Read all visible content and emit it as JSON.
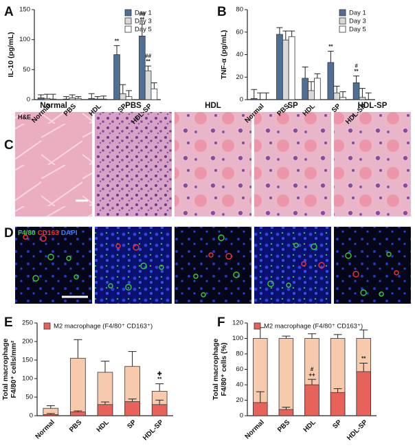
{
  "panel_letters": [
    "A",
    "B",
    "C",
    "D",
    "E",
    "F"
  ],
  "micrographs": {
    "columns": [
      "Normal",
      "PBS",
      "HDL",
      "SP",
      "HDL-SP"
    ],
    "stain_label": "H&E",
    "if_labels": [
      {
        "text": "F4/80",
        "color": "#3fd13f"
      },
      {
        "text": "CD163",
        "color": "#ff2b2b"
      },
      {
        "text": "DAPI",
        "color": "#3b7cff"
      }
    ]
  },
  "chart_data": [
    {
      "type": "bar",
      "mode": "grouped",
      "ylabel": [
        "IL-10 (pg/mL)"
      ],
      "legend": "upper right",
      "categories": [
        "Normal",
        "PBS",
        "HDL",
        "SP",
        "HDL-SP"
      ],
      "series": [
        {
          "name": "Day 1",
          "color": "#4f6f95",
          "values": [
            3,
            1,
            2,
            75,
            106
          ],
          "errors": [
            5,
            4,
            8,
            15,
            20
          ]
        },
        {
          "name": "Day 3",
          "color": "#d9d9d9",
          "values": [
            2,
            3,
            1,
            10,
            48
          ],
          "errors": [
            7,
            5,
            4,
            15,
            8
          ]
        },
        {
          "name": "Day 5",
          "color": "#ffffff",
          "values": [
            1,
            2,
            1,
            5,
            18
          ],
          "errors": [
            8,
            3,
            5,
            10,
            10
          ]
        }
      ],
      "annotations": [
        {
          "category": "SP",
          "series": "Day 1",
          "lines": [
            "**"
          ]
        },
        {
          "category": "HDL-SP",
          "series": "Day 1",
          "lines": [
            "##",
            "**"
          ]
        },
        {
          "category": "HDL-SP",
          "series": "Day 3",
          "lines": [
            "##",
            "**"
          ]
        }
      ],
      "ylim": [
        0,
        150
      ],
      "yticks": [
        0,
        50,
        100,
        150
      ]
    },
    {
      "type": "bar",
      "mode": "grouped",
      "ylabel": [
        "TNF-α (pg/mL)"
      ],
      "legend": "upper right",
      "categories": [
        "Normal",
        "PBS",
        "HDL",
        "SP",
        "HDL-SP"
      ],
      "series": [
        {
          "name": "Day 1",
          "color": "#4f6f95",
          "values": [
            1,
            58,
            19,
            33,
            15
          ],
          "errors": [
            8,
            6,
            10,
            10,
            6
          ]
        },
        {
          "name": "Day 3",
          "color": "#d9d9d9",
          "values": [
            0,
            53,
            8,
            6,
            2
          ],
          "errors": [
            6,
            8,
            8,
            6,
            8
          ]
        },
        {
          "name": "Day 5",
          "color": "#ffffff",
          "values": [
            0,
            56,
            19,
            2,
            0
          ],
          "errors": [
            6,
            5,
            4,
            5,
            6
          ]
        }
      ],
      "annotations": [
        {
          "category": "SP",
          "series": "Day 1",
          "lines": [
            "**"
          ]
        },
        {
          "category": "HDL-SP",
          "series": "Day 1",
          "lines": [
            "#",
            "**"
          ]
        }
      ],
      "ylim": [
        0,
        80
      ],
      "yticks": [
        0,
        20,
        40,
        60,
        80
      ]
    },
    {
      "type": "bar",
      "mode": "overlay",
      "ylabel": [
        "Total macrophage",
        "F4/80⁺ cells/mm²"
      ],
      "legend": "top",
      "categories": [
        "Normal",
        "PBS",
        "HDL",
        "SP",
        "HDL-SP"
      ],
      "series": [
        {
          "name": "M2 macrophage (F4/80⁺ CD163⁺)",
          "color": "#e8625c",
          "values": [
            3,
            10,
            30,
            38,
            30
          ],
          "errors": [
            3,
            3,
            7,
            7,
            12
          ]
        },
        {
          "color": "#f7caad",
          "values": [
            20,
            155,
            117,
            133,
            66
          ],
          "errors": [
            7,
            50,
            30,
            40,
            20
          ]
        }
      ],
      "annotations": [
        {
          "category": "HDL-SP",
          "series_index": 1,
          "lines": [
            "✚",
            "**"
          ]
        }
      ],
      "ylim": [
        0,
        250
      ],
      "yticks": [
        0,
        50,
        100,
        150,
        200,
        250
      ]
    },
    {
      "type": "bar",
      "mode": "overlay",
      "ylabel": [
        "Total macrophage",
        "F4/80⁺ cells (%)"
      ],
      "legend": "top",
      "categories": [
        "Normal",
        "PBS",
        "HDL",
        "SP",
        "HDL-SP"
      ],
      "series": [
        {
          "name": "M2 macrophage (F4/80⁺ CD163⁺)",
          "color": "#e8625c",
          "values": [
            17,
            8,
            40,
            30,
            57
          ],
          "errors": [
            14,
            3,
            7,
            5,
            11
          ]
        },
        {
          "color": "#f7caad",
          "values": [
            100,
            100,
            100,
            100,
            100
          ],
          "errors": [
            14,
            3,
            6,
            5,
            11
          ]
        }
      ],
      "annotations": [
        {
          "category": "HDL",
          "series_index": 0,
          "lines": [
            "#",
            "++"
          ]
        },
        {
          "category": "HDL-SP",
          "series_index": 0,
          "lines": [
            "**"
          ]
        }
      ],
      "ylim": [
        0,
        120
      ],
      "yticks": [
        0,
        20,
        40,
        60,
        80,
        100,
        120
      ]
    }
  ]
}
